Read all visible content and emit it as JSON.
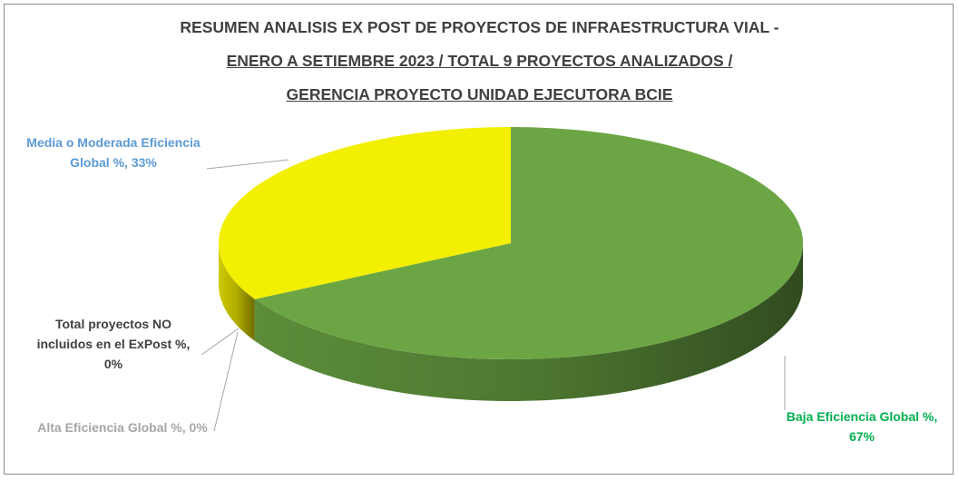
{
  "chart_data": {
    "type": "pie3d",
    "title": [
      "RESUMEN ANALISIS EX POST DE PROYECTOS DE INFRAESTRUCTURA VIAL -",
      "ENERO A SETIEMBRE 2023 / TOTAL 9 PROYECTOS ANALIZADOS /",
      "GERENCIA PROYECTO UNIDAD EJECUTORA BCIE"
    ],
    "categories": [
      "Baja Eficiencia Global %",
      "Media o Moderada Eficiencia Global %",
      "Alta Eficiencia Global %",
      "Total proyectos NO incluidos en el ExPost %"
    ],
    "values": [
      67,
      33,
      0,
      0
    ],
    "value_labels": [
      "67%",
      "33%",
      "0%",
      "0%"
    ],
    "colors": [
      "#6ca644",
      "#f3ef00",
      "#a5a5a5",
      "#4472c4"
    ],
    "label_colors": [
      "#00b050",
      "#5b9bd5",
      "#a6a6a6",
      "#404040"
    ]
  }
}
